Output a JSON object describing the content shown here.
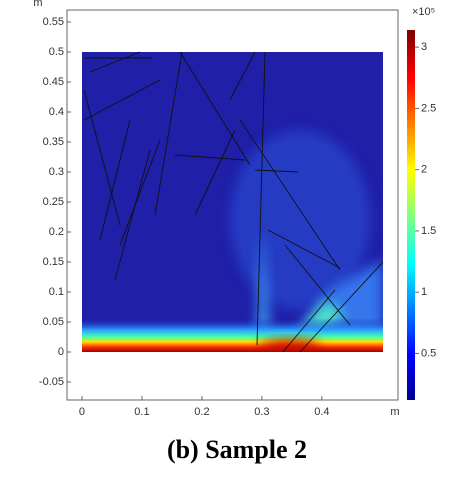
{
  "chart_data": {
    "type": "heatmap",
    "title": "(b) Sample 2",
    "x_unit": "m",
    "y_unit": "m",
    "xlim": [
      -0.025,
      0.527
    ],
    "xticks": [
      0,
      0.1,
      0.2,
      0.3,
      0.4
    ],
    "ylim": [
      -0.08,
      0.57
    ],
    "yticks": [
      -0.05,
      0,
      0.05,
      0.1,
      0.15,
      0.2,
      0.25,
      0.3,
      0.35,
      0.4,
      0.45,
      0.5,
      0.55
    ],
    "colorbar_label": "×10⁵",
    "clim": [
      0.12,
      3.14
    ],
    "cticks": [
      0.5,
      1,
      1.5,
      2,
      2.5,
      3
    ]
  }
}
